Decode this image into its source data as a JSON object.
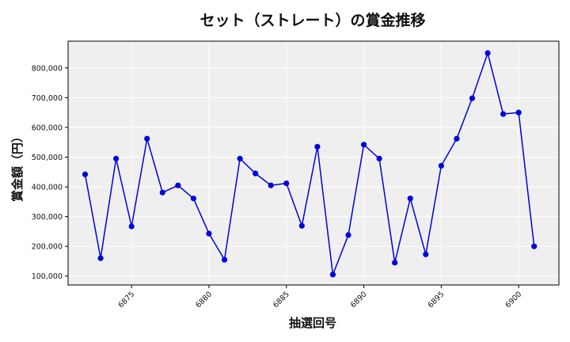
{
  "chart_data": {
    "type": "line",
    "title": "セット（ストレート）の賞金推移",
    "xlabel": "抽選回号",
    "ylabel": "賞金額（円）",
    "xlim": [
      6870.9,
      6902.6
    ],
    "ylim": [
      70000,
      890000
    ],
    "x_ticks": [
      6875,
      6880,
      6885,
      6890,
      6895,
      6900
    ],
    "y_ticks": [
      100000,
      200000,
      300000,
      400000,
      500000,
      600000,
      700000,
      800000
    ],
    "y_tick_labels": [
      "100,000",
      "200,000",
      "300,000",
      "400,000",
      "500,000",
      "600,000",
      "700,000",
      "800,000"
    ],
    "grid": true,
    "colors": {
      "line": "#0000dd",
      "marker": "#0000dd",
      "plot_bg": "#efefef",
      "grid": "#ffffff"
    },
    "series": [
      {
        "x": [
          6872,
          6873,
          6874,
          6875,
          6876,
          6877,
          6878,
          6879,
          6880,
          6881,
          6882,
          6883,
          6884,
          6885,
          6886,
          6887,
          6888,
          6889,
          6890,
          6891,
          6892,
          6893,
          6894,
          6895,
          6896,
          6897,
          6898,
          6899,
          6900,
          6901
        ],
        "y": [
          442000,
          160000,
          495000,
          267000,
          562000,
          381000,
          405000,
          361000,
          243000,
          155000,
          495000,
          445000,
          405000,
          412000,
          269000,
          535000,
          105000,
          238000,
          542000,
          495000,
          145000,
          361000,
          173000,
          471000,
          562000,
          698000,
          850000,
          645000,
          650000,
          200000
        ]
      }
    ]
  }
}
